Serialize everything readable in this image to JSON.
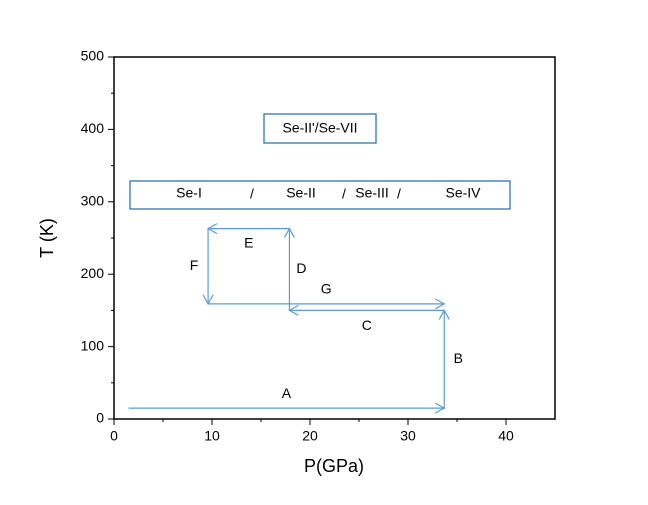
{
  "chart_data": {
    "type": "arrows",
    "x_label": "P(GPa)",
    "y_label": "T (K)",
    "xlim": [
      0,
      45
    ],
    "xticks": [
      0,
      10,
      20,
      30,
      40
    ],
    "ylim": [
      0,
      500
    ],
    "yticks": [
      0,
      100,
      200,
      300,
      400,
      500
    ],
    "color": "#5b9bd5",
    "arrows": [
      {
        "name": "A",
        "x": [
          1.5,
          33.7
        ],
        "y": [
          15,
          15
        ]
      },
      {
        "name": "B",
        "x": [
          33.7,
          33.7
        ],
        "y": [
          15,
          150
        ]
      },
      {
        "name": "C",
        "x": [
          33.7,
          17.9
        ],
        "y": [
          150,
          150
        ]
      },
      {
        "name": "D",
        "x": [
          17.9,
          17.9
        ],
        "y": [
          150,
          263
        ]
      },
      {
        "name": "E",
        "x": [
          17.9,
          9.6
        ],
        "y": [
          263,
          263
        ]
      },
      {
        "name": "F",
        "x": [
          9.6,
          9.6
        ],
        "y": [
          263,
          159
        ]
      },
      {
        "name": "G",
        "x": [
          9.6,
          33.7
        ],
        "y": [
          159,
          159
        ]
      }
    ],
    "annotations": {
      "high_phase": "Se-II'/Se-VII",
      "phases": [
        "Se-I",
        "/",
        "Se-II",
        "/",
        "Se-III",
        "/",
        "Se-IV"
      ]
    }
  }
}
